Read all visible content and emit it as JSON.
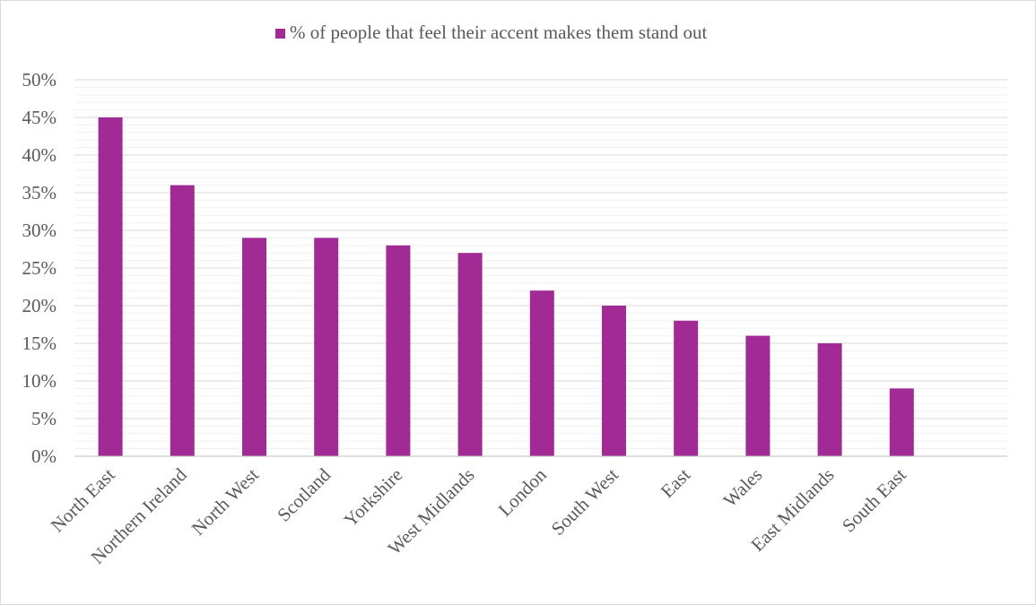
{
  "colors": {
    "bar": "#a12a95",
    "major_grid": "#d9d9d9",
    "minor_grid": "#f0f0f0",
    "axis": "#bfbfbf",
    "text": "#595959"
  },
  "chart_data": {
    "type": "bar",
    "title": "",
    "xlabel": "",
    "ylabel": "",
    "legend_position": "top",
    "grid": true,
    "ylim": [
      0,
      50
    ],
    "ytick_labels": [
      "0%",
      "5%",
      "10%",
      "15%",
      "20%",
      "25%",
      "30%",
      "35%",
      "40%",
      "45%",
      "50%"
    ],
    "categories": [
      "North East",
      "Northern Ireland",
      "North West",
      "Scotland",
      "Yorkshire",
      "West Midlands",
      "London",
      "South West",
      "East",
      "Wales",
      "East Midlands",
      "South East"
    ],
    "series": [
      {
        "name": "% of people that feel their accent makes them stand out",
        "values": [
          45,
          36,
          29,
          29,
          28,
          27,
          22,
          20,
          18,
          16,
          15,
          9
        ]
      }
    ]
  }
}
